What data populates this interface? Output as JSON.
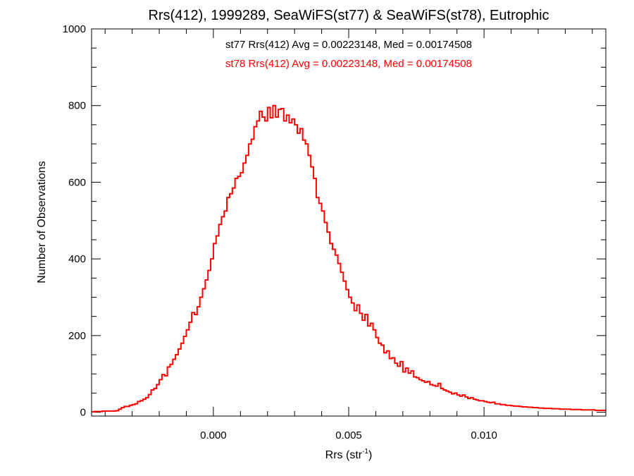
{
  "chart_data": {
    "type": "line",
    "title": "Rrs(412), 1999289, SeaWiFS(st77) & SeaWiFS(st78), Eutrophic",
    "xlabel": {
      "main": "Rrs (str",
      "superscript": "-1",
      "close": ")"
    },
    "ylabel": "Number of Observations",
    "xlim": [
      -0.0045,
      0.0145
    ],
    "ylim": [
      -10,
      1000
    ],
    "xticks": [
      0.0,
      0.005,
      0.01
    ],
    "xtick_labels": [
      "0.000",
      "0.005",
      "0.010"
    ],
    "yticks": [
      0,
      200,
      400,
      600,
      800,
      1000
    ],
    "ytick_labels": [
      "0",
      "200",
      "400",
      "600",
      "800",
      "1000"
    ],
    "x_minor_step": 0.001,
    "y_minor_step": 50,
    "grid": false,
    "annotations": [
      {
        "text": "st77 Rrs(412) Avg = 0.00223148, Med = 0.00174508",
        "color": "#000000"
      },
      {
        "text": "st78 Rrs(412) Avg = 0.00223148, Med = 0.00174508",
        "color": "#ff0000"
      }
    ],
    "series": [
      {
        "color": "#ff0000",
        "style": "step",
        "bin_width": 0.0001,
        "x_start": -0.0045,
        "counts": [
          1,
          2,
          2,
          2,
          3,
          3,
          3,
          3,
          3,
          4,
          8,
          12,
          15,
          15,
          18,
          20,
          22,
          28,
          30,
          34,
          38,
          46,
          58,
          62,
          72,
          85,
          98,
          95,
          118,
          125,
          138,
          150,
          165,
          180,
          198,
          215,
          235,
          260,
          255,
          275,
          300,
          322,
          345,
          370,
          400,
          440,
          460,
          490,
          510,
          525,
          560,
          570,
          585,
          610,
          615,
          625,
          650,
          670,
          700,
          712,
          745,
          760,
          785,
          770,
          760,
          795,
          768,
          800,
          770,
          790,
          792,
          760,
          775,
          755,
          765,
          750,
          728,
          740,
          710,
          700,
          670,
          640,
          610,
          560,
          545,
          525,
          495,
          470,
          440,
          425,
          410,
          388,
          365,
          342,
          320,
          300,
          285,
          265,
          280,
          258,
          240,
          255,
          225,
          232,
          215,
          195,
          180,
          175,
          155,
          160,
          140,
          142,
          128,
          120,
          132,
          105,
          115,
          102,
          108,
          92,
          90,
          85,
          82,
          78,
          80,
          72,
          70,
          68,
          75,
          62,
          58,
          55,
          52,
          48,
          50,
          45,
          42,
          45,
          40,
          36,
          38,
          34,
          32,
          30,
          30,
          28,
          26,
          25,
          26,
          22,
          22,
          20,
          20,
          18,
          18,
          17,
          16,
          16,
          15,
          14,
          14,
          13,
          13,
          12,
          12,
          11,
          11,
          10,
          10,
          10,
          9,
          9,
          9,
          8,
          8,
          8,
          8,
          7,
          7,
          7,
          7,
          6,
          6,
          6,
          6,
          6,
          5,
          5,
          5,
          5
        ]
      }
    ]
  }
}
